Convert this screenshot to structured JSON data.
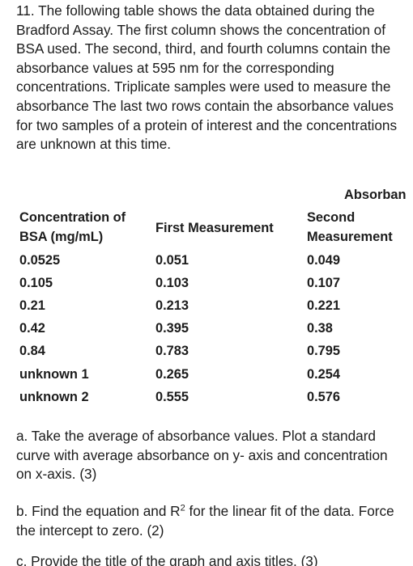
{
  "intro": "11. The following table shows the data obtained during the Bradford Assay. The first column shows the concentration of BSA used. The second, third, and fourth columns contain the absorbance values at 595 nm for the corresponding concentrations. Triplicate samples were used to measure the absorbance The last two rows contain the absorbance values for two samples of a protein of interest and the concentrations are unknown at this time.",
  "table": {
    "group_header": "Absorban",
    "col1_header_line1": "Concentration of",
    "col1_header_line2": "BSA (mg/mL)",
    "col2_header": "First Measurement",
    "col3_header_line1": "Second",
    "col3_header_line2": "Measurement",
    "rows": [
      {
        "conc": "0.0525",
        "first": "0.051",
        "second": "0.049"
      },
      {
        "conc": "0.105",
        "first": "0.103",
        "second": "0.107"
      },
      {
        "conc": "0.21",
        "first": "0.213",
        "second": "0.221"
      },
      {
        "conc": "0.42",
        "first": "0.395",
        "second": "0.38"
      },
      {
        "conc": "0.84",
        "first": "0.783",
        "second": "0.795"
      },
      {
        "conc": "unknown 1",
        "first": "0.265",
        "second": "0.254"
      },
      {
        "conc": "unknown 2",
        "first": "0.555",
        "second": "0.576"
      }
    ]
  },
  "questions": {
    "a": "a. Take the average of absorbance values. Plot a standard curve with average absorbance on y- axis and concentration on x-axis. (3)",
    "b_prefix": "b. Find the equation and R",
    "b_sup": "2",
    "b_suffix": " for the linear fit of the data. Force the intercept to zero. (2)",
    "c": "c. Provide the title of the graph and axis titles. (3)"
  }
}
